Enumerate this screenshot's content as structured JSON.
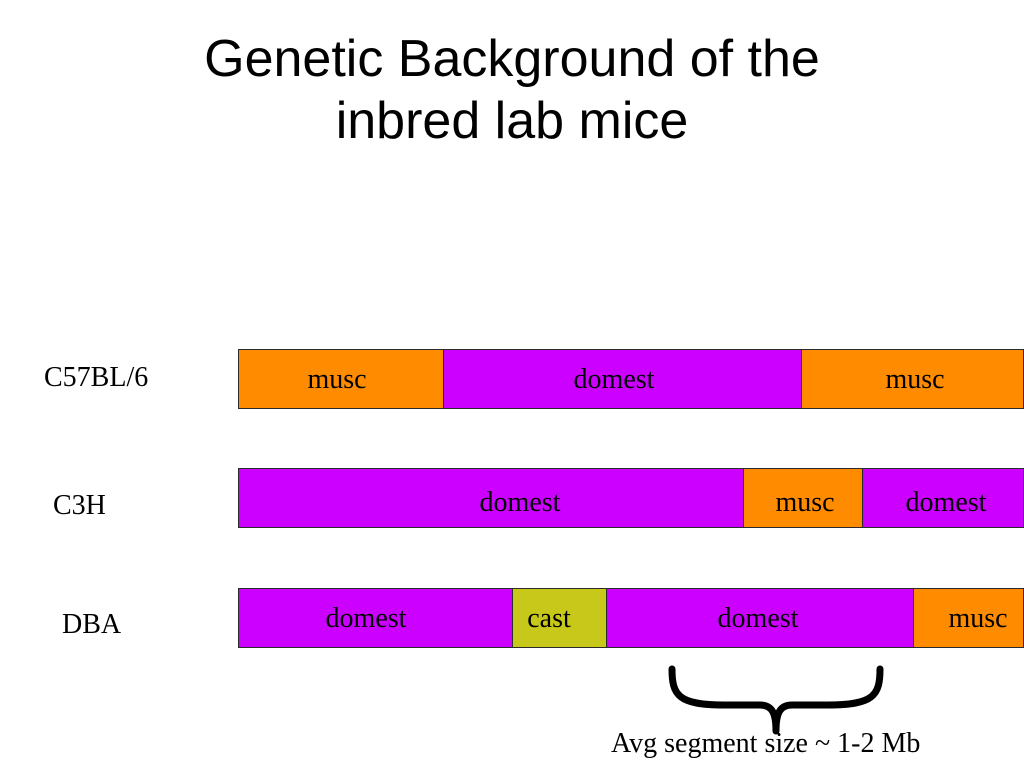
{
  "slide": {
    "title_lines": [
      "Genetic Background of the",
      "inbred lab mice"
    ],
    "caption": "Avg segment size ~ 1-2 Mb"
  },
  "colors": {
    "musc": "#ff8c00",
    "domest": "#cc00ff",
    "cast": "#c8c81a"
  },
  "strains": [
    {
      "label": "C57BL/6",
      "segments": [
        {
          "label": "musc",
          "type": "musc"
        },
        {
          "label": "domest",
          "type": "domest"
        },
        {
          "label": "musc",
          "type": "musc"
        }
      ]
    },
    {
      "label": "C3H",
      "segments": [
        {
          "label": "domest",
          "type": "domest"
        },
        {
          "label": "musc",
          "type": "musc"
        },
        {
          "label": "domest",
          "type": "domest"
        }
      ]
    },
    {
      "label": "DBA",
      "segments": [
        {
          "label": "domest",
          "type": "domest"
        },
        {
          "label": "cast",
          "type": "cast"
        },
        {
          "label": "domest",
          "type": "domest"
        },
        {
          "label": "musc",
          "type": "musc"
        }
      ]
    }
  ]
}
